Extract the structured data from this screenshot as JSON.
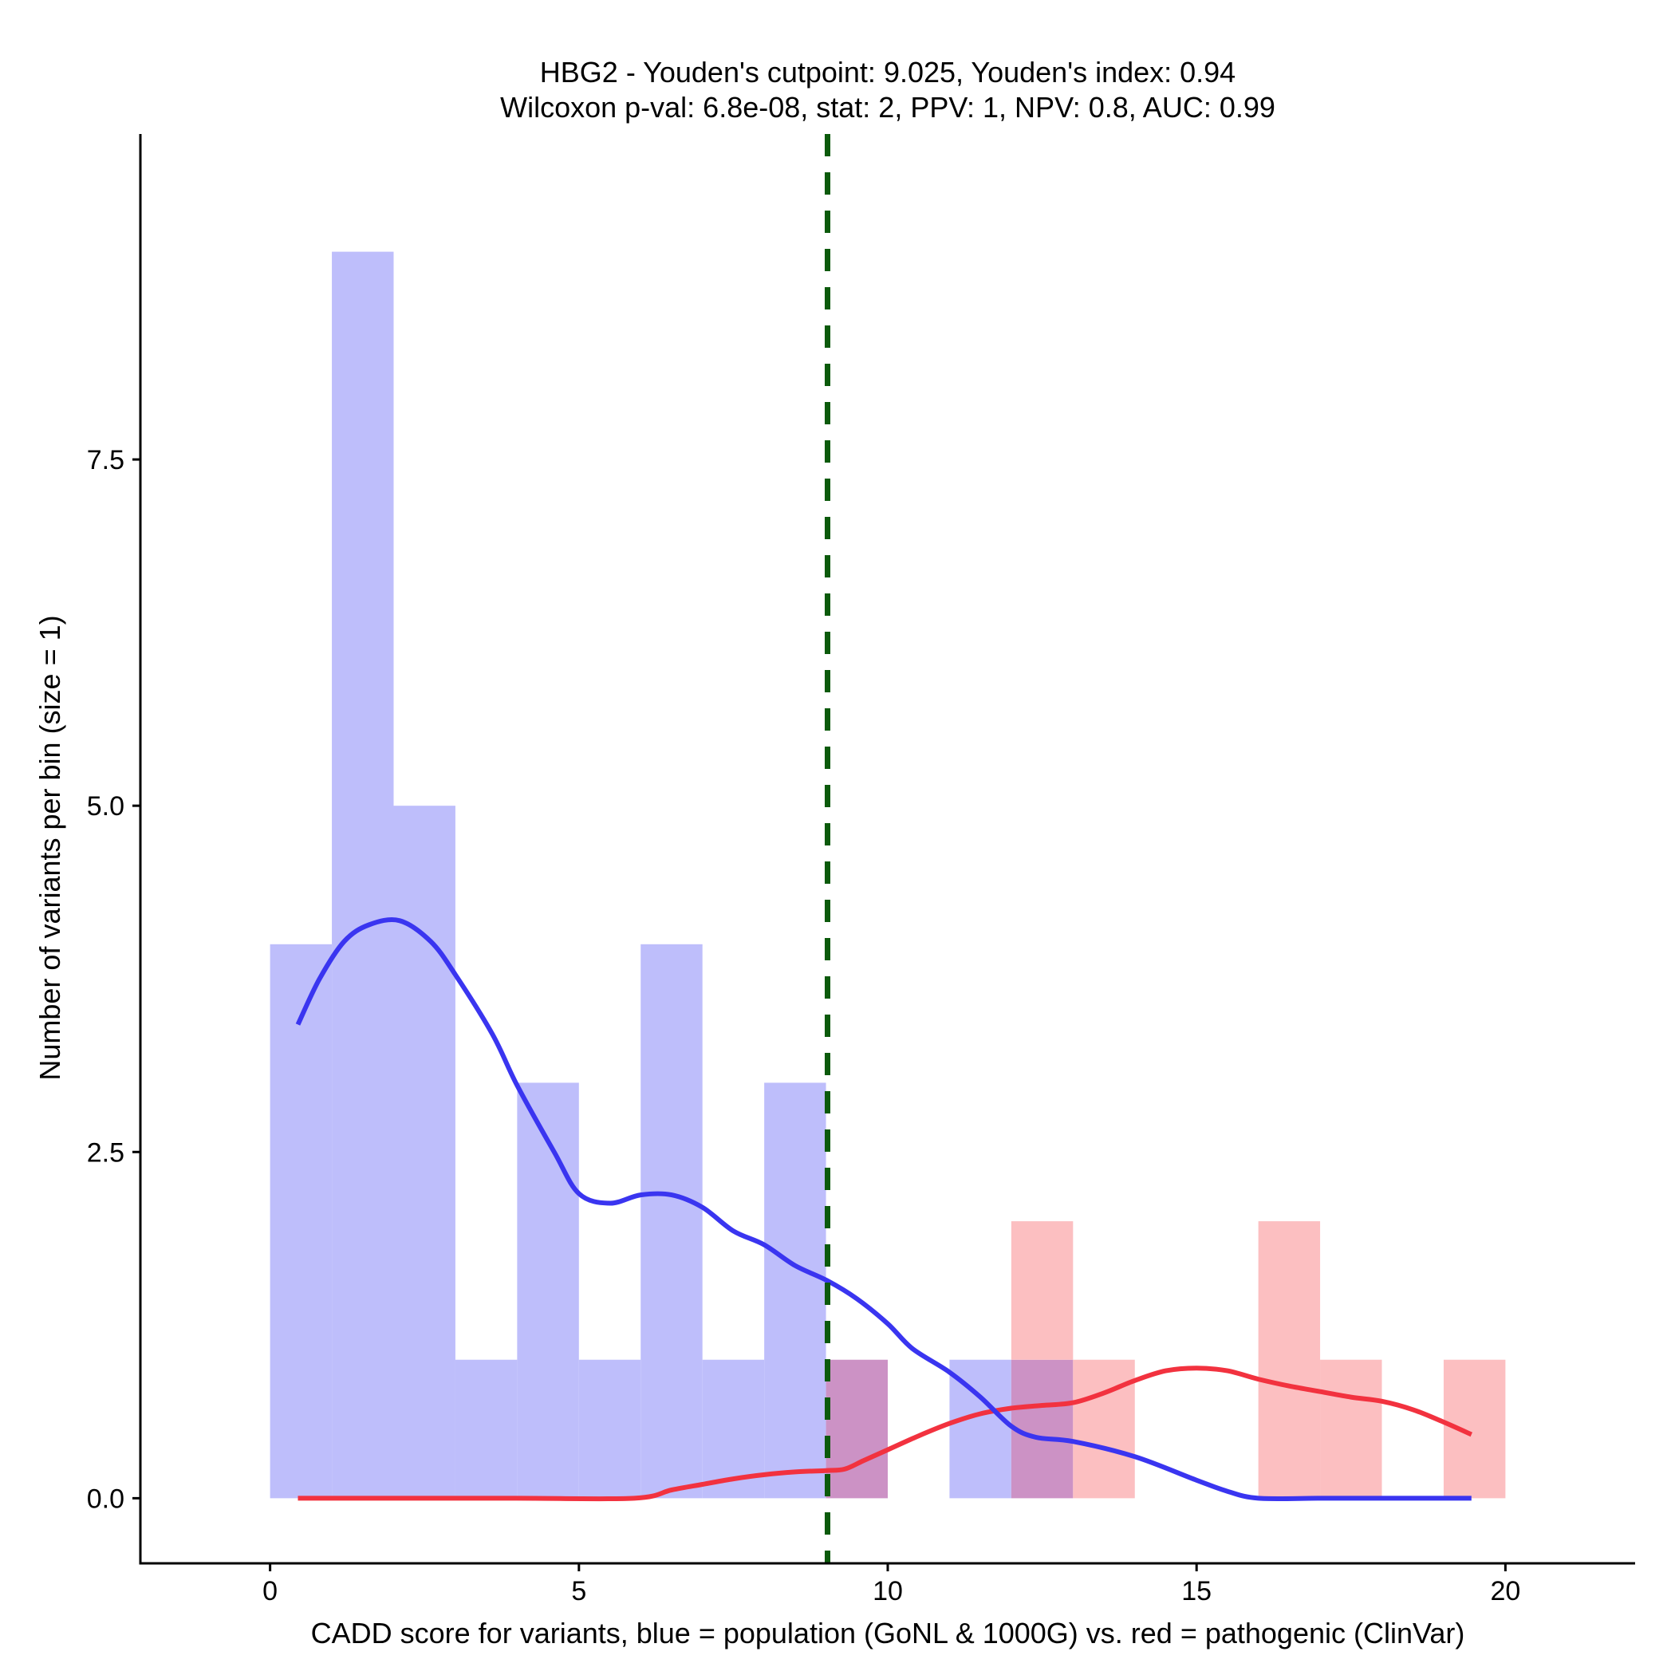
{
  "chart_data": {
    "type": "bar",
    "title_line1": "HBG2 - Youden's cutpoint: 9.025, Youden's index: 0.94",
    "title_line2": "Wilcoxon p-val: 6.8e-08, stat: 2, PPV: 1, NPV: 0.8, AUC: 0.99",
    "xlabel": "CADD score for variants, blue = population (GoNL & 1000G) vs. red = pathogenic (ClinVar)",
    "ylabel": "Number of variants per bin (size = 1)",
    "xlim": [
      -2.1,
      22.1
    ],
    "ylim": [
      -0.47,
      9.85
    ],
    "x_ticks": [
      0,
      5,
      10,
      15,
      20
    ],
    "x_tick_labels": [
      "0",
      "5",
      "10",
      "15",
      "20"
    ],
    "y_ticks": [
      0,
      2.5,
      5,
      7.5
    ],
    "y_tick_labels": [
      "0.0",
      "2.5",
      "5.0",
      "7.5"
    ],
    "bin_width": 1,
    "cutpoint": 9.025,
    "colors": {
      "population_bar": "#bebefb",
      "pathogenic_bar": "#fcbfc1",
      "overlap_bar": "#cc92c5",
      "population_line": "#3a35f0",
      "pathogenic_line": "#f2323f",
      "cutpoint_line": "#0c5a0c",
      "axis": "#000000"
    },
    "series": [
      {
        "name": "population (GoNL & 1000G)",
        "color_key": "population",
        "bins": [
          {
            "x0": 0,
            "x1": 1,
            "count": 4
          },
          {
            "x0": 1,
            "x1": 2,
            "count": 9
          },
          {
            "x0": 2,
            "x1": 3,
            "count": 5
          },
          {
            "x0": 3,
            "x1": 4,
            "count": 1
          },
          {
            "x0": 4,
            "x1": 5,
            "count": 3
          },
          {
            "x0": 5,
            "x1": 6,
            "count": 1
          },
          {
            "x0": 6,
            "x1": 7,
            "count": 4
          },
          {
            "x0": 7,
            "x1": 8,
            "count": 1
          },
          {
            "x0": 8,
            "x1": 9,
            "count": 3
          },
          {
            "x0": 9,
            "x1": 10,
            "count": 1
          },
          {
            "x0": 11,
            "x1": 12,
            "count": 1
          },
          {
            "x0": 12,
            "x1": 13,
            "count": 1
          }
        ],
        "density": [
          [
            0.45,
            3.42
          ],
          [
            0.8,
            3.75
          ],
          [
            1.2,
            4.02
          ],
          [
            1.6,
            4.14
          ],
          [
            2.1,
            4.17
          ],
          [
            2.6,
            4.02
          ],
          [
            3.0,
            3.78
          ],
          [
            3.6,
            3.35
          ],
          [
            4.0,
            2.98
          ],
          [
            4.6,
            2.5
          ],
          [
            5.0,
            2.2
          ],
          [
            5.5,
            2.13
          ],
          [
            6.0,
            2.19
          ],
          [
            6.5,
            2.19
          ],
          [
            7.0,
            2.1
          ],
          [
            7.5,
            1.93
          ],
          [
            8.0,
            1.83
          ],
          [
            8.5,
            1.68
          ],
          [
            9.025,
            1.57
          ],
          [
            9.5,
            1.44
          ],
          [
            10.0,
            1.26
          ],
          [
            10.4,
            1.08
          ],
          [
            11.0,
            0.91
          ],
          [
            11.5,
            0.73
          ],
          [
            12.0,
            0.52
          ],
          [
            12.4,
            0.44
          ],
          [
            13.0,
            0.41
          ],
          [
            14.0,
            0.3
          ],
          [
            15.0,
            0.13
          ],
          [
            15.5,
            0.05
          ],
          [
            16.0,
            0.0
          ],
          [
            17.0,
            0.0
          ],
          [
            18.0,
            0.0
          ],
          [
            19.45,
            0.0
          ]
        ]
      },
      {
        "name": "pathogenic (ClinVar)",
        "color_key": "pathogenic",
        "bins": [
          {
            "x0": 9,
            "x1": 10,
            "count": 1
          },
          {
            "x0": 12,
            "x1": 13,
            "count": 2
          },
          {
            "x0": 13,
            "x1": 14,
            "count": 1
          },
          {
            "x0": 16,
            "x1": 17,
            "count": 2
          },
          {
            "x0": 17,
            "x1": 18,
            "count": 1
          },
          {
            "x0": 19,
            "x1": 20,
            "count": 1
          }
        ],
        "density": [
          [
            0.45,
            0.0
          ],
          [
            2.0,
            0.0
          ],
          [
            4.0,
            0.0
          ],
          [
            5.9,
            0.0
          ],
          [
            6.5,
            0.06
          ],
          [
            7.0,
            0.1
          ],
          [
            7.5,
            0.14
          ],
          [
            8.0,
            0.17
          ],
          [
            8.5,
            0.19
          ],
          [
            9.0,
            0.2
          ],
          [
            9.3,
            0.21
          ],
          [
            9.6,
            0.27
          ],
          [
            10.0,
            0.35
          ],
          [
            10.5,
            0.45
          ],
          [
            11.0,
            0.54
          ],
          [
            11.5,
            0.61
          ],
          [
            12.0,
            0.65
          ],
          [
            12.5,
            0.67
          ],
          [
            13.0,
            0.69
          ],
          [
            13.5,
            0.76
          ],
          [
            14.0,
            0.85
          ],
          [
            14.5,
            0.92
          ],
          [
            15.0,
            0.94
          ],
          [
            15.5,
            0.92
          ],
          [
            16.0,
            0.86
          ],
          [
            16.5,
            0.81
          ],
          [
            17.0,
            0.77
          ],
          [
            17.5,
            0.73
          ],
          [
            18.0,
            0.7
          ],
          [
            18.5,
            0.64
          ],
          [
            19.0,
            0.55
          ],
          [
            19.45,
            0.46
          ]
        ]
      }
    ]
  }
}
